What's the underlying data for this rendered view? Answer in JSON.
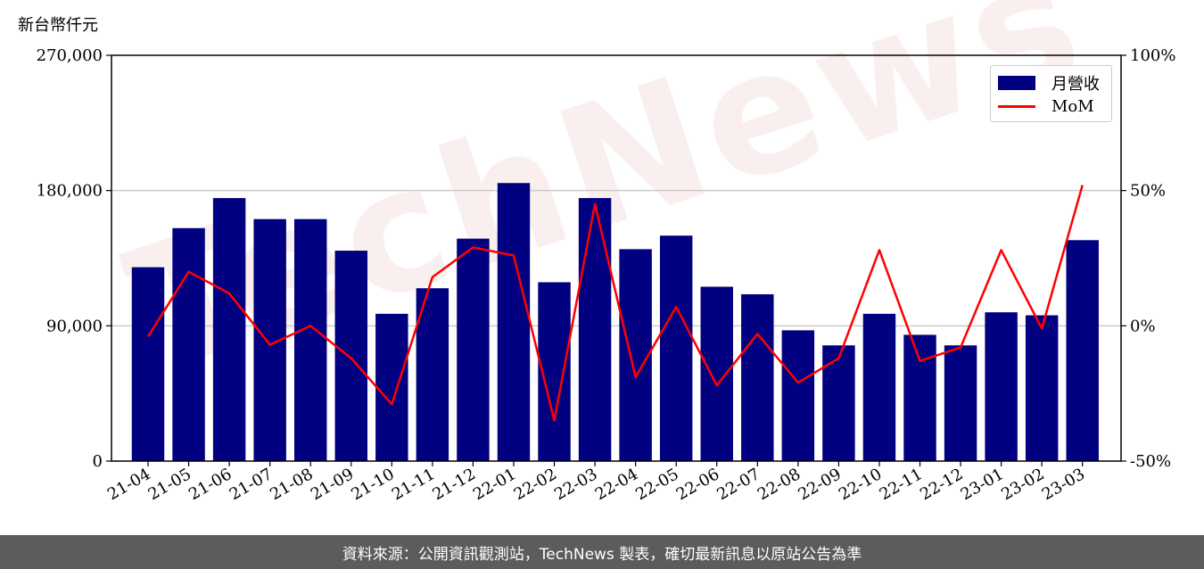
{
  "unit_label": "新台幣仟元",
  "watermark": "TechNews",
  "footer_text": "資料來源：公開資訊觀測站，TechNews 製表，確切最新訊息以原站公告為準",
  "colors": {
    "bar": "#000080",
    "line": "#ff0000",
    "grid": "#cccccc",
    "footer_bg": "#5c5c5c"
  },
  "legend": {
    "bar_label": "月營收",
    "line_label": "MoM"
  },
  "chart_data": {
    "type": "bar",
    "categories": [
      "21-04",
      "21-05",
      "21-06",
      "21-07",
      "21-08",
      "21-09",
      "21-10",
      "21-11",
      "21-12",
      "22-01",
      "22-02",
      "22-03",
      "22-04",
      "22-05",
      "22-06",
      "22-07",
      "22-08",
      "22-09",
      "22-10",
      "22-11",
      "22-12",
      "23-01",
      "23-02",
      "23-03"
    ],
    "series": [
      {
        "name": "月營收",
        "type": "bar",
        "axis": "left",
        "values": [
          129000,
          155000,
          175000,
          161000,
          161000,
          140000,
          98000,
          115000,
          148000,
          185000,
          119000,
          175000,
          141000,
          150000,
          116000,
          111000,
          87000,
          77000,
          98000,
          84000,
          77000,
          99000,
          97000,
          147000
        ]
      },
      {
        "name": "MoM",
        "type": "line",
        "axis": "right",
        "values": [
          -4,
          20,
          12,
          -7,
          0,
          -12,
          -29,
          18,
          29,
          26,
          -35,
          45,
          -19,
          7,
          -22,
          -3,
          -21,
          -12,
          28,
          -13,
          -8,
          28,
          -1,
          52
        ]
      }
    ],
    "y_left": {
      "ylim": [
        0,
        270000
      ],
      "ticks": [
        0,
        90000,
        180000,
        270000
      ],
      "tick_labels": [
        "0",
        "90,000",
        "180,000",
        "270,000"
      ]
    },
    "y_right": {
      "ylim": [
        -50,
        100
      ],
      "ticks": [
        -50,
        0,
        50,
        100
      ],
      "tick_labels": [
        "-50%",
        "0%",
        "50%",
        "100%"
      ]
    },
    "grid": true,
    "legend_position": "top-right"
  }
}
